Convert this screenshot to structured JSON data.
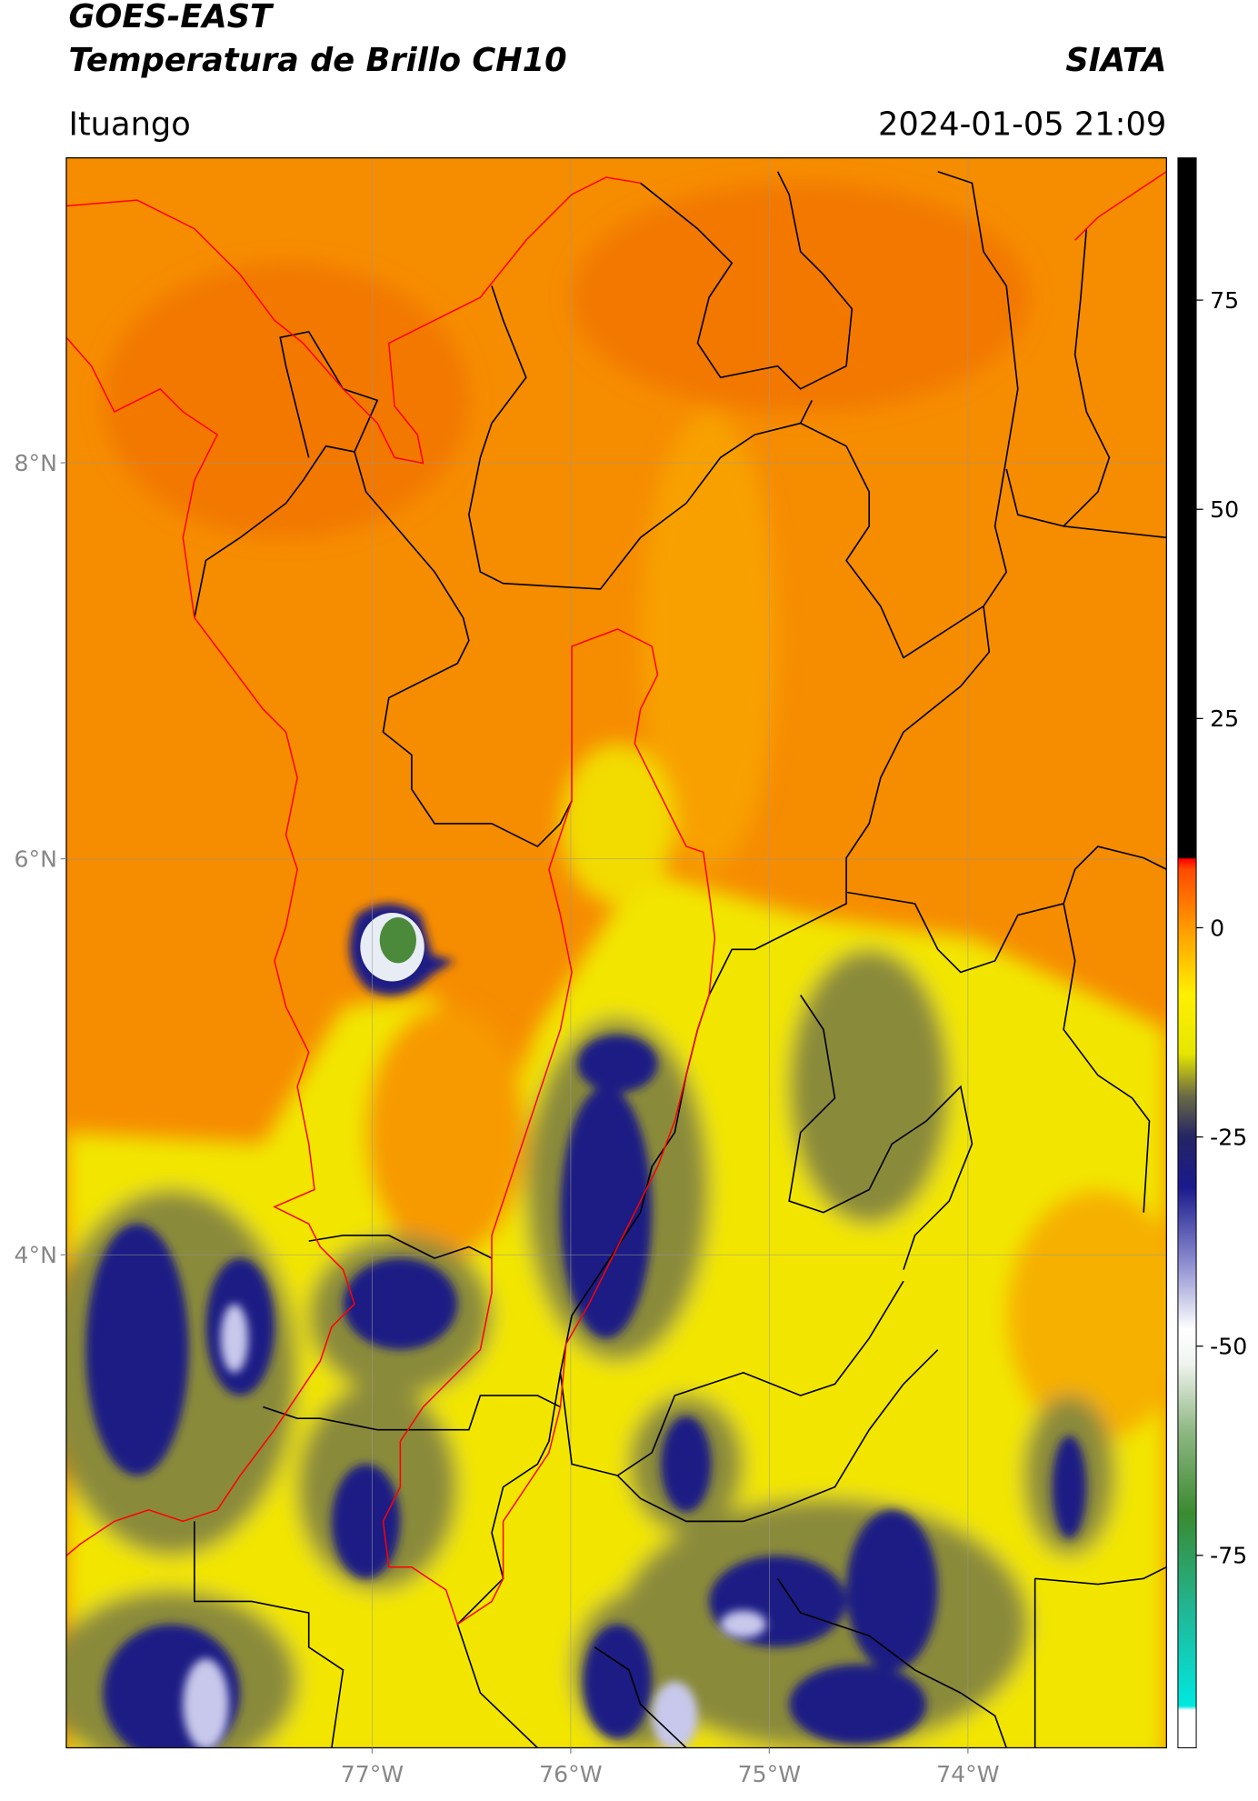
{
  "header": {
    "title": "GOES-EAST",
    "subtitle": "Temperatura de Brillo CH10",
    "source": "SIATA",
    "location": "Ituango",
    "datetime": "2024-01-05 21:09"
  },
  "map": {
    "xlim": [
      -78.54,
      -73.0
    ],
    "ylim": [
      1.51,
      9.54
    ],
    "xticks": [
      {
        "value": -77,
        "label": "77°W"
      },
      {
        "value": -76,
        "label": "76°W"
      },
      {
        "value": -75,
        "label": "75°W"
      },
      {
        "value": -74,
        "label": "74°W"
      }
    ],
    "yticks": [
      {
        "value": 8,
        "label": "8°N"
      },
      {
        "value": 6,
        "label": "6°N"
      },
      {
        "value": 4,
        "label": "4°N"
      }
    ],
    "grid": true
  },
  "colorbar": {
    "lim": [
      -98,
      92
    ],
    "ticks": [
      75,
      50,
      25,
      0,
      -25,
      -50,
      -75
    ],
    "stops": [
      {
        "value": -98,
        "color": "#ffffff"
      },
      {
        "value": -93.5,
        "color": "#ffffff"
      },
      {
        "value": -93,
        "color": "#00e8e0"
      },
      {
        "value": -82,
        "color": "#20b898"
      },
      {
        "value": -70,
        "color": "#3a8a30"
      },
      {
        "value": -60,
        "color": "#90b884"
      },
      {
        "value": -52,
        "color": "#f0f4f0"
      },
      {
        "value": -48,
        "color": "#ffffff"
      },
      {
        "value": -40,
        "color": "#8c8cd0"
      },
      {
        "value": -31,
        "color": "#1a1a8c"
      },
      {
        "value": -25,
        "color": "#242464"
      },
      {
        "value": -20,
        "color": "#6c6c44"
      },
      {
        "value": -15,
        "color": "#e6e600"
      },
      {
        "value": -8,
        "color": "#fff000"
      },
      {
        "value": 0,
        "color": "#ff9a00"
      },
      {
        "value": 7,
        "color": "#ff4a00"
      },
      {
        "value": 8.2,
        "color": "#ff0000"
      },
      {
        "value": 8.4,
        "color": "#000000"
      },
      {
        "value": 92,
        "color": "#000000"
      }
    ]
  }
}
